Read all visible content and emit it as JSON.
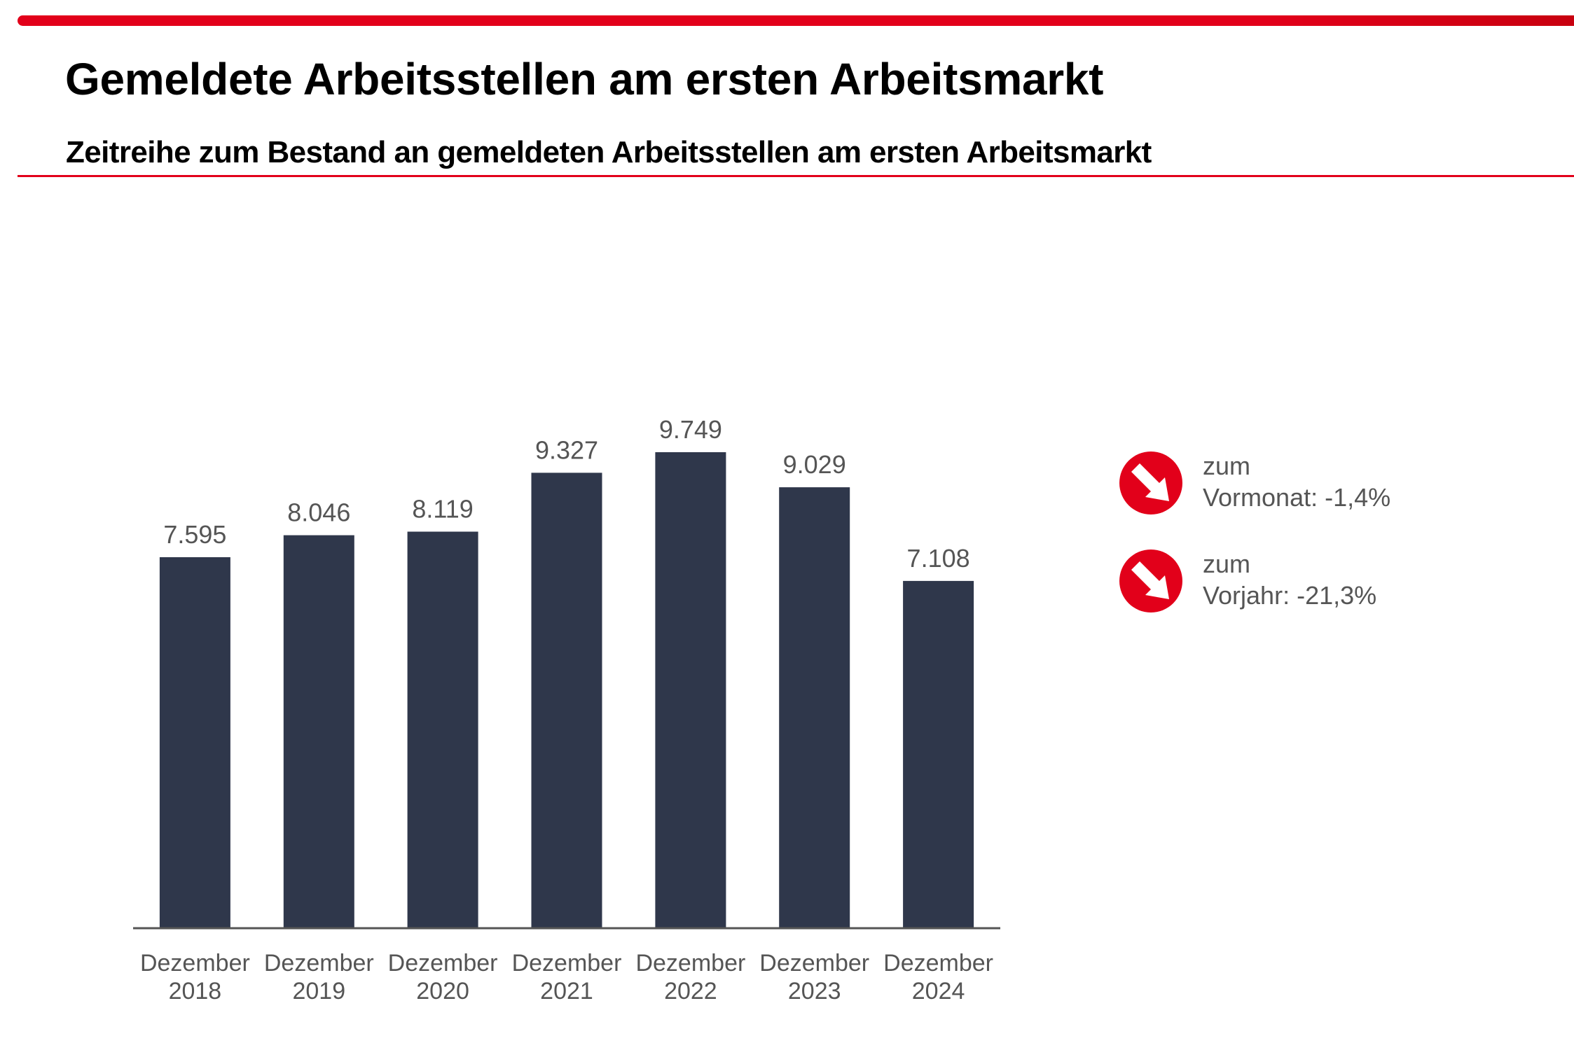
{
  "header": {
    "title": "Gemeldete Arbeitsstellen am ersten Arbeitsmarkt",
    "subtitle": "Zeitreihe zum Bestand an gemeldeten Arbeitsstellen am ersten Arbeitsmarkt"
  },
  "colors": {
    "accent": "#e2001a",
    "bar": "#2f374b",
    "axis": "#555555",
    "label": "#555555"
  },
  "chart_data": {
    "type": "bar",
    "title": "Gemeldete Arbeitsstellen am ersten Arbeitsmarkt",
    "subtitle": "Zeitreihe zum Bestand an gemeldeten Arbeitsstellen am ersten Arbeitsmarkt",
    "categories": [
      [
        "Dezember",
        "2018"
      ],
      [
        "Dezember",
        "2019"
      ],
      [
        "Dezember",
        "2020"
      ],
      [
        "Dezember",
        "2021"
      ],
      [
        "Dezember",
        "2022"
      ],
      [
        "Dezember",
        "2023"
      ],
      [
        "Dezember",
        "2024"
      ]
    ],
    "values": [
      7595,
      8046,
      8119,
      9327,
      9749,
      9029,
      7108
    ],
    "value_labels": [
      "7.595",
      "8.046",
      "8.119",
      "9.327",
      "9.749",
      "9.029",
      "7.108"
    ],
    "xlabel": "",
    "ylabel": "",
    "ylim": [
      0,
      9749
    ],
    "grid": false,
    "legend": "none",
    "y_axis_visible": false
  },
  "indicators": [
    {
      "icon": "arrow-down-right-icon",
      "line1": "zum",
      "label": "Vormonat:",
      "value": "-1,4%",
      "direction": "down"
    },
    {
      "icon": "arrow-down-right-icon",
      "line1": "zum",
      "label": "Vorjahr:",
      "value": "-21,3%",
      "direction": "down"
    }
  ]
}
